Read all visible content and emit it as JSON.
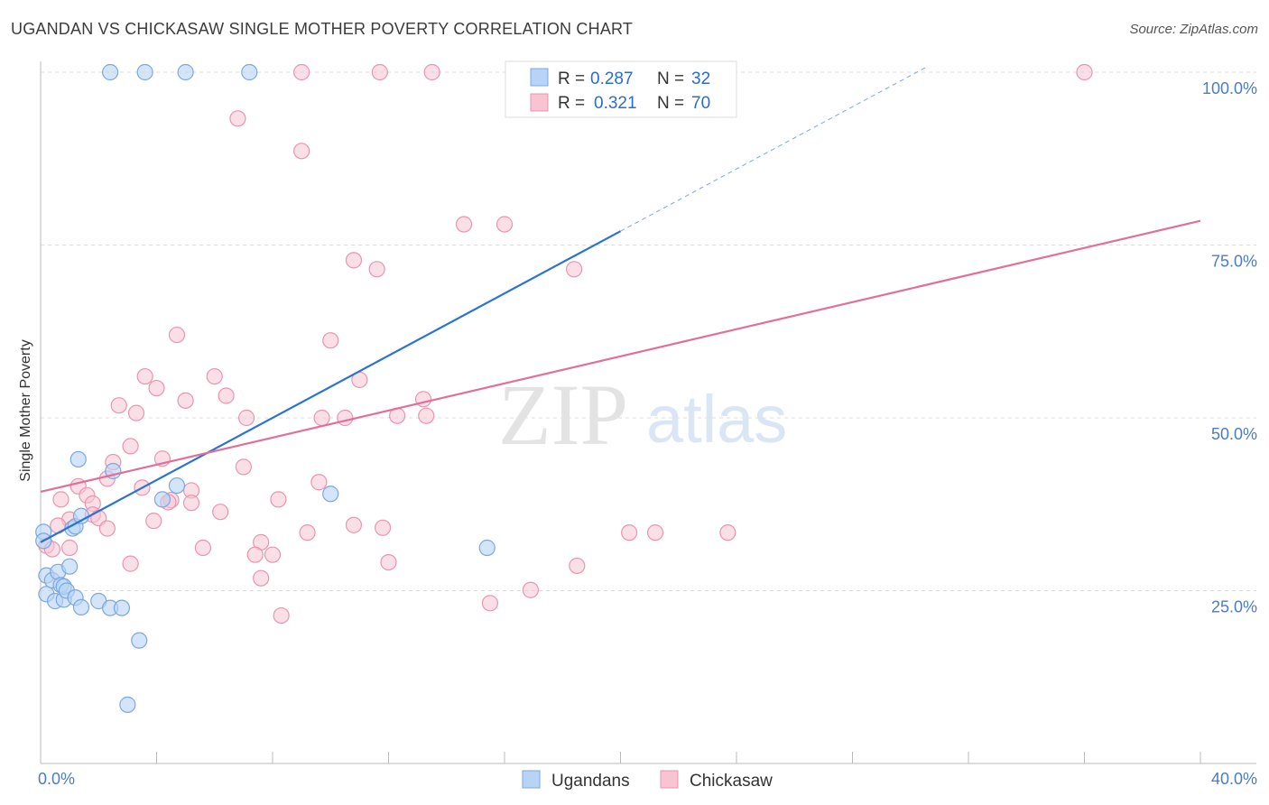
{
  "header": {
    "title": "UGANDAN VS CHICKASAW SINGLE MOTHER POVERTY CORRELATION CHART",
    "source": "Source: ZipAtlas.com"
  },
  "watermark": {
    "zip": "ZIP",
    "atlas": "atlas"
  },
  "colors": {
    "ugandans_fill": "#b8d3f5",
    "ugandans_stroke": "#7aa8e0",
    "ugandans_line": "#2b74d0",
    "chickasaw_fill": "#f8c4d4",
    "chickasaw_stroke": "#e995b0",
    "chickasaw_line": "#e0709a",
    "value_text": "#2b6ccf"
  },
  "legend_top": {
    "rows": [
      {
        "r_label": "R =",
        "r_value": "0.287",
        "n_label": "N =",
        "n_value": "32"
      },
      {
        "r_label": "R =",
        "r_value": "0.321",
        "n_label": "N =",
        "n_value": "70"
      }
    ]
  },
  "legend_bottom": [
    "Ugandans",
    "Chickasaw"
  ],
  "chart_data": {
    "type": "scatter",
    "title": "UGANDAN VS CHICKASAW SINGLE MOTHER POVERTY CORRELATION CHART",
    "xlabel": "",
    "ylabel": "Single Mother Poverty",
    "xlim": [
      0,
      40
    ],
    "ylim": [
      0,
      100
    ],
    "x_tick_labels": [
      "0.0%",
      "40.0%"
    ],
    "y_ticks": [
      25,
      50,
      75,
      100
    ],
    "y_tick_labels": [
      "25.0%",
      "50.0%",
      "75.0%",
      "100.0%"
    ],
    "grid": "horizontal dashed",
    "legend_position": "top-center and bottom-center",
    "series": [
      {
        "name": "Ugandans",
        "r": 0.287,
        "n": 32,
        "trend": {
          "x0": 0,
          "y0": 32,
          "x1": 20,
          "y1": 77,
          "extend_dashed_to_x": 30.5
        },
        "points": [
          [
            2.4,
            100
          ],
          [
            3.6,
            100
          ],
          [
            5.0,
            100
          ],
          [
            7.2,
            100
          ],
          [
            0.1,
            33.5
          ],
          [
            0.1,
            32.2
          ],
          [
            0.2,
            27.2
          ],
          [
            0.2,
            24.5
          ],
          [
            0.4,
            26.5
          ],
          [
            0.5,
            23.5
          ],
          [
            0.6,
            27.7
          ],
          [
            0.7,
            25.8
          ],
          [
            0.8,
            23.7
          ],
          [
            0.8,
            25.6
          ],
          [
            0.9,
            25.0
          ],
          [
            1.0,
            28.5
          ],
          [
            1.1,
            34.0
          ],
          [
            1.2,
            34.3
          ],
          [
            1.2,
            24.0
          ],
          [
            1.3,
            44.0
          ],
          [
            1.4,
            35.8
          ],
          [
            1.4,
            22.6
          ],
          [
            2.0,
            23.5
          ],
          [
            2.4,
            22.5
          ],
          [
            2.5,
            42.3
          ],
          [
            2.8,
            22.5
          ],
          [
            3.0,
            8.5
          ],
          [
            3.4,
            17.8
          ],
          [
            4.2,
            38.2
          ],
          [
            4.7,
            40.2
          ],
          [
            10.0,
            39.0
          ],
          [
            15.4,
            31.2
          ]
        ]
      },
      {
        "name": "Chickasaw",
        "r": 0.321,
        "n": 70,
        "trend": {
          "x0": 0,
          "y0": 39.3,
          "x1": 40,
          "y1": 78.5
        },
        "points": [
          [
            9.0,
            100
          ],
          [
            11.7,
            100
          ],
          [
            13.5,
            100
          ],
          [
            36.0,
            100
          ],
          [
            6.8,
            93.3
          ],
          [
            9.0,
            88.6
          ],
          [
            14.6,
            78.0
          ],
          [
            16.0,
            78.0
          ],
          [
            10.8,
            72.8
          ],
          [
            11.6,
            71.5
          ],
          [
            18.4,
            71.5
          ],
          [
            4.7,
            62.0
          ],
          [
            10.0,
            61.2
          ],
          [
            3.6,
            56.0
          ],
          [
            6.0,
            56.0
          ],
          [
            11.0,
            55.5
          ],
          [
            4.0,
            54.3
          ],
          [
            6.4,
            53.2
          ],
          [
            5.0,
            52.5
          ],
          [
            13.2,
            52.7
          ],
          [
            2.7,
            51.8
          ],
          [
            3.3,
            50.7
          ],
          [
            7.1,
            50.0
          ],
          [
            9.7,
            50.0
          ],
          [
            10.5,
            50.0
          ],
          [
            12.3,
            50.3
          ],
          [
            13.3,
            50.3
          ],
          [
            3.1,
            45.9
          ],
          [
            4.2,
            44.1
          ],
          [
            2.5,
            43.6
          ],
          [
            7.0,
            42.9
          ],
          [
            2.3,
            41.2
          ],
          [
            9.6,
            40.7
          ],
          [
            1.3,
            40.1
          ],
          [
            3.5,
            39.9
          ],
          [
            5.2,
            39.5
          ],
          [
            1.6,
            38.8
          ],
          [
            0.7,
            38.2
          ],
          [
            1.8,
            37.6
          ],
          [
            4.5,
            38.1
          ],
          [
            4.4,
            37.8
          ],
          [
            5.2,
            37.7
          ],
          [
            8.2,
            38.2
          ],
          [
            6.2,
            36.4
          ],
          [
            1.8,
            36.0
          ],
          [
            2.0,
            35.5
          ],
          [
            1.0,
            35.3
          ],
          [
            3.9,
            35.1
          ],
          [
            0.6,
            34.4
          ],
          [
            2.3,
            34.0
          ],
          [
            10.8,
            34.5
          ],
          [
            11.8,
            34.1
          ],
          [
            9.2,
            33.4
          ],
          [
            20.3,
            33.4
          ],
          [
            21.2,
            33.4
          ],
          [
            23.7,
            33.4
          ],
          [
            0.2,
            31.5
          ],
          [
            0.4,
            31.0
          ],
          [
            1.0,
            31.2
          ],
          [
            5.6,
            31.2
          ],
          [
            7.6,
            32.0
          ],
          [
            7.4,
            30.2
          ],
          [
            8.0,
            30.2
          ],
          [
            3.1,
            28.9
          ],
          [
            12.0,
            29.1
          ],
          [
            18.5,
            28.6
          ],
          [
            7.6,
            26.8
          ],
          [
            16.9,
            25.1
          ],
          [
            15.5,
            23.2
          ],
          [
            8.3,
            21.4
          ]
        ]
      }
    ]
  }
}
